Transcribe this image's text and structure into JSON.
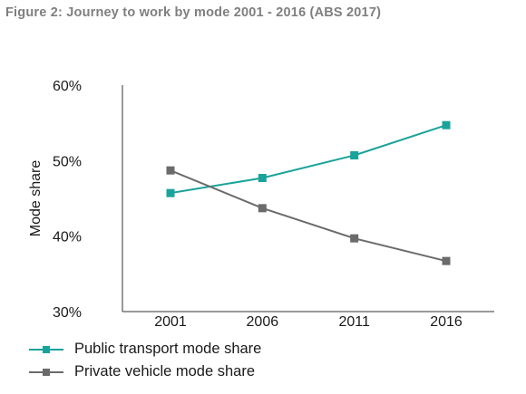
{
  "title": "Figure 2: Journey to work by mode 2001 - 2016 (ABS 2017)",
  "chart_data": {
    "type": "line",
    "title": "Figure 2: Journey to work by mode 2001 - 2016 (ABS 2017)",
    "xlabel": "",
    "ylabel": "Mode share",
    "categories": [
      "2001",
      "2006",
      "2011",
      "2016"
    ],
    "ylim": [
      30,
      60
    ],
    "yticks": [
      "30%",
      "40%",
      "50%",
      "60%"
    ],
    "ytick_values": [
      30,
      40,
      50,
      60
    ],
    "grid": false,
    "legend_position": "bottom-left",
    "series": [
      {
        "name": "Public transport mode share",
        "color": "#1aa39a",
        "marker": "square",
        "values": [
          45.7,
          47.7,
          50.7,
          54.7
        ]
      },
      {
        "name": "Private vehicle mode share",
        "color": "#6b6b6b",
        "marker": "square",
        "values": [
          48.7,
          43.7,
          39.7,
          36.7
        ]
      }
    ]
  }
}
